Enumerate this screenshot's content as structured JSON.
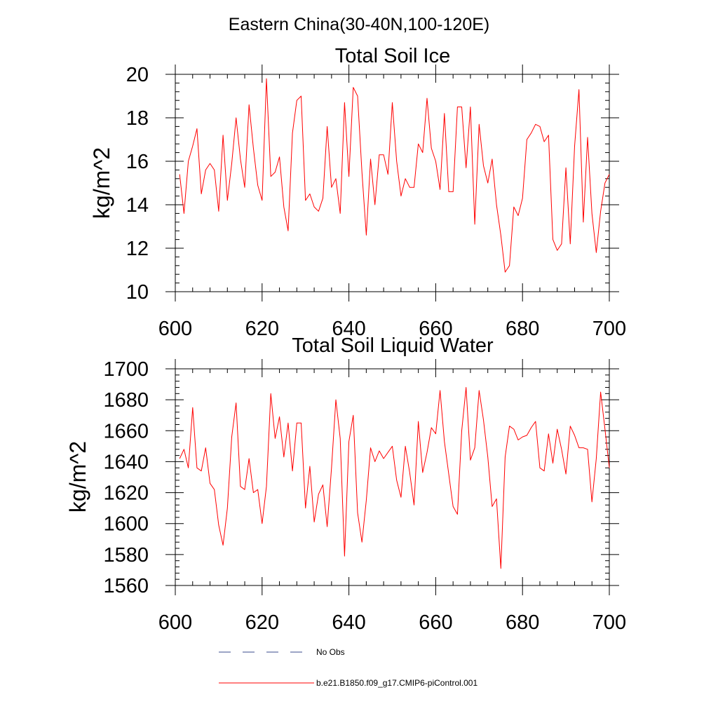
{
  "figure": {
    "title": "Eastern China(30-40N,100-120E)"
  },
  "colors": {
    "model_line": "#ff0000",
    "obs_line": "#3a4b8c",
    "axis": "#000000",
    "background": "#ffffff"
  },
  "legend": {
    "entries": [
      {
        "label": "No Obs",
        "style": "dashed",
        "color": "#3a4b8c"
      },
      {
        "label": "b.e21.B1850.f09_g17.CMIP6-piControl.001",
        "style": "solid",
        "color": "#ff0000"
      }
    ]
  },
  "chart_data": [
    {
      "type": "line",
      "title": "Total Soil Ice",
      "xlabel": "",
      "ylabel": "kg/m^2",
      "xlim": [
        600,
        700
      ],
      "ylim": [
        10,
        20
      ],
      "xticks": [
        600,
        620,
        640,
        660,
        680,
        700
      ],
      "yticks": [
        10,
        12,
        14,
        16,
        18,
        20
      ],
      "grid": false,
      "series": [
        {
          "name": "b.e21.B1850.f09_g17.CMIP6-piControl.001",
          "color": "#ff0000",
          "x": [
            601,
            602,
            603,
            604,
            605,
            606,
            607,
            608,
            609,
            610,
            611,
            612,
            613,
            614,
            615,
            616,
            617,
            618,
            619,
            620,
            621,
            622,
            623,
            624,
            625,
            626,
            627,
            628,
            629,
            630,
            631,
            632,
            633,
            634,
            635,
            636,
            637,
            638,
            639,
            640,
            641,
            642,
            643,
            644,
            645,
            646,
            647,
            648,
            649,
            650,
            651,
            652,
            653,
            654,
            655,
            656,
            657,
            658,
            659,
            660,
            661,
            662,
            663,
            664,
            665,
            666,
            667,
            668,
            669,
            670,
            671,
            672,
            673,
            674,
            675,
            676,
            677,
            678,
            679,
            680,
            681,
            682,
            683,
            684,
            685,
            686,
            687,
            688,
            689,
            690,
            691,
            692,
            693,
            694,
            695,
            696,
            697,
            698,
            699,
            700
          ],
          "values": [
            15.4,
            13.6,
            16.0,
            16.7,
            17.5,
            14.5,
            15.6,
            15.9,
            15.6,
            13.7,
            17.2,
            14.2,
            15.9,
            18.0,
            16.1,
            14.8,
            18.6,
            16.6,
            14.9,
            14.2,
            19.8,
            15.3,
            15.5,
            16.2,
            13.9,
            12.8,
            17.3,
            18.8,
            19.0,
            14.2,
            14.5,
            13.9,
            13.7,
            14.3,
            17.6,
            14.8,
            15.2,
            13.6,
            18.7,
            15.3,
            19.4,
            19.0,
            15.5,
            12.6,
            16.1,
            14.0,
            16.3,
            16.3,
            15.4,
            18.7,
            16.0,
            14.4,
            15.2,
            14.8,
            14.8,
            16.8,
            16.4,
            18.9,
            16.6,
            16.0,
            14.7,
            18.2,
            14.6,
            14.6,
            18.5,
            18.5,
            15.7,
            18.5,
            13.1,
            17.7,
            15.8,
            15.0,
            16.1,
            14.0,
            12.6,
            10.9,
            11.2,
            13.9,
            13.5,
            14.3,
            17.0,
            17.3,
            17.7,
            17.6,
            16.9,
            17.2,
            12.4,
            11.9,
            12.2,
            15.7,
            12.2,
            16.7,
            19.3,
            13.2,
            17.1,
            13.6,
            11.8,
            13.7,
            15.0,
            15.4
          ]
        }
      ]
    },
    {
      "type": "line",
      "title": "Total Soil Liquid Water",
      "xlabel": "",
      "ylabel": "kg/m^2",
      "xlim": [
        600,
        700
      ],
      "ylim": [
        1560,
        1700
      ],
      "xticks": [
        600,
        620,
        640,
        660,
        680,
        700
      ],
      "yticks": [
        1560,
        1580,
        1600,
        1620,
        1640,
        1660,
        1680,
        1700
      ],
      "grid": false,
      "series": [
        {
          "name": "b.e21.B1850.f09_g17.CMIP6-piControl.001",
          "color": "#ff0000",
          "x": [
            601,
            602,
            603,
            604,
            605,
            606,
            607,
            608,
            609,
            610,
            611,
            612,
            613,
            614,
            615,
            616,
            617,
            618,
            619,
            620,
            621,
            622,
            623,
            624,
            625,
            626,
            627,
            628,
            629,
            630,
            631,
            632,
            633,
            634,
            635,
            636,
            637,
            638,
            639,
            640,
            641,
            642,
            643,
            644,
            645,
            646,
            647,
            648,
            649,
            650,
            651,
            652,
            653,
            654,
            655,
            656,
            657,
            658,
            659,
            660,
            661,
            662,
            663,
            664,
            665,
            666,
            667,
            668,
            669,
            670,
            671,
            672,
            673,
            674,
            675,
            676,
            677,
            678,
            679,
            680,
            681,
            682,
            683,
            684,
            685,
            686,
            687,
            688,
            689,
            690,
            691,
            692,
            693,
            694,
            695,
            696,
            697,
            698,
            699,
            700
          ],
          "values": [
            1642,
            1648,
            1636,
            1675,
            1636,
            1634,
            1649,
            1626,
            1622,
            1599,
            1586,
            1610,
            1656,
            1678,
            1624,
            1622,
            1642,
            1620,
            1622,
            1600,
            1624,
            1684,
            1655,
            1669,
            1643,
            1665,
            1634,
            1665,
            1665,
            1610,
            1637,
            1601,
            1619,
            1625,
            1598,
            1636,
            1680,
            1655,
            1579,
            1653,
            1670,
            1607,
            1588,
            1615,
            1649,
            1640,
            1647,
            1642,
            1646,
            1650,
            1628,
            1617,
            1650,
            1633,
            1612,
            1666,
            1633,
            1646,
            1662,
            1658,
            1686,
            1653,
            1632,
            1611,
            1606,
            1660,
            1688,
            1641,
            1649,
            1686,
            1667,
            1643,
            1611,
            1616,
            1571,
            1643,
            1663,
            1661,
            1654,
            1656,
            1657,
            1662,
            1666,
            1636,
            1634,
            1658,
            1639,
            1661,
            1648,
            1632,
            1663,
            1657,
            1649,
            1649,
            1648,
            1614,
            1642,
            1685,
            1661,
            1636
          ]
        }
      ]
    }
  ]
}
